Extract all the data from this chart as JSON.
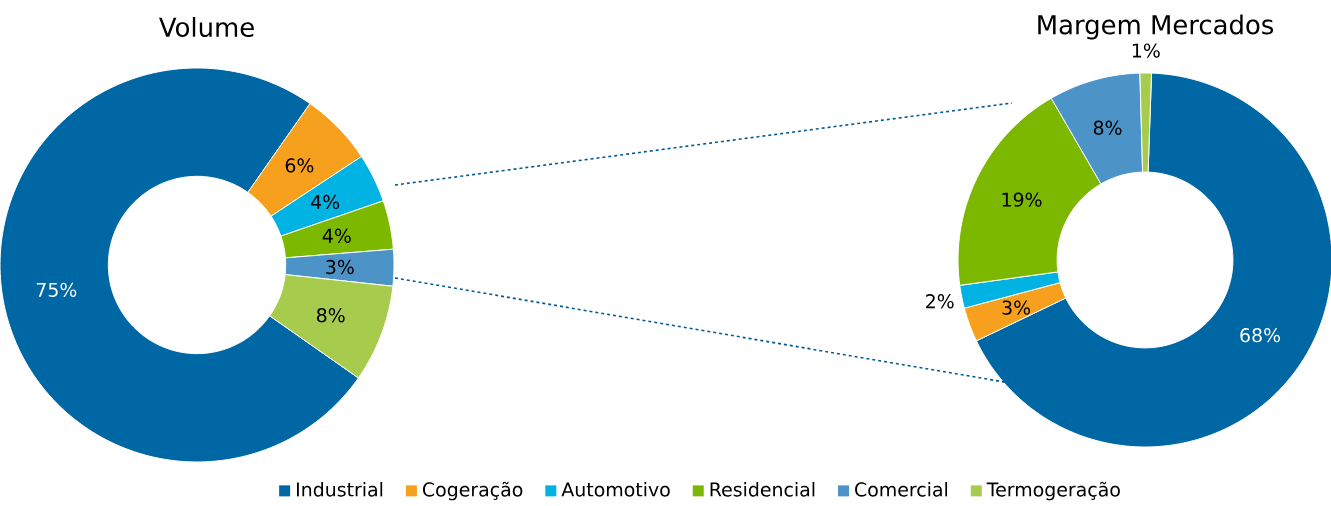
{
  "chart_data": [
    {
      "type": "donut",
      "title": "Volume",
      "categories": [
        "Industrial",
        "Cogeração",
        "Automotivo",
        "Residencial",
        "Comercial",
        "Termogeração"
      ],
      "values": [
        75,
        6,
        4,
        4,
        3,
        8
      ],
      "value_labels": [
        "75%",
        "6%",
        "4%",
        "4%",
        "3%",
        "8%"
      ],
      "colors": [
        "#0067a5",
        "#f7a01d",
        "#00b3e3",
        "#7db800",
        "#4c94c7",
        "#a7cb4d"
      ],
      "legend": "bottom"
    },
    {
      "type": "donut",
      "title": "Margem Mercados",
      "categories": [
        null,
        null,
        null,
        null,
        null,
        null
      ],
      "values": [
        68,
        3,
        2,
        19,
        8,
        1
      ],
      "value_labels": [
        "68%",
        "3%",
        "2%",
        "19%",
        "8%",
        "1%"
      ],
      "colors": [
        "#0067a5",
        "#f7a01d",
        "#00b3e3",
        "#7db800",
        "#4c94c7",
        "#a7cb4d"
      ]
    }
  ]
}
